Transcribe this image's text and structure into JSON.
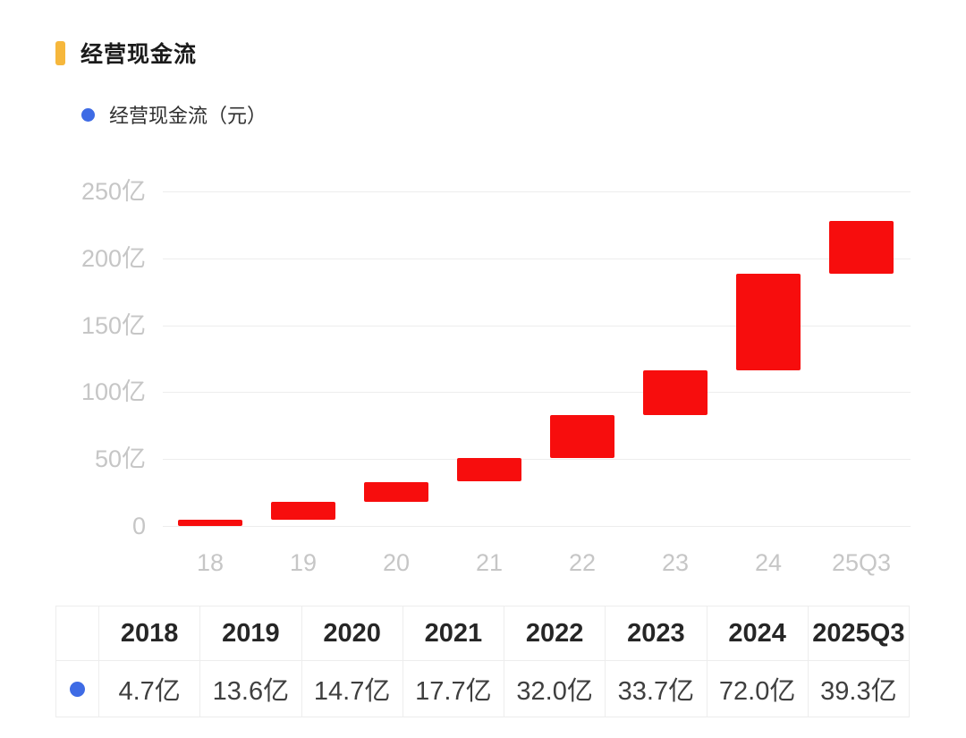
{
  "header": {
    "title": "经营现金流",
    "accent_color": "#f6b73c"
  },
  "legend": {
    "label": "经营现金流（元）",
    "dot_color": "#3e6be5"
  },
  "chart_data": {
    "type": "bar",
    "subtype": "waterfall-cumulative",
    "title": "经营现金流",
    "series_name": "经营现金流（元）",
    "categories": [
      "18",
      "19",
      "20",
      "21",
      "22",
      "23",
      "24",
      "25Q3"
    ],
    "values": [
      4.7,
      13.6,
      14.7,
      17.7,
      32.0,
      33.7,
      72.0,
      39.3
    ],
    "unit": "亿",
    "note": "each bar floats from previous cumulative sum to new cumulative sum",
    "cumulative_ends": [
      4.7,
      18.3,
      33.0,
      50.7,
      82.7,
      116.4,
      188.4,
      227.7
    ],
    "ylim": [
      0,
      250
    ],
    "y_ticks": [
      {
        "value": 0,
        "label": "0"
      },
      {
        "value": 50,
        "label": "50亿"
      },
      {
        "value": 100,
        "label": "100亿"
      },
      {
        "value": 150,
        "label": "150亿"
      },
      {
        "value": 200,
        "label": "200亿"
      },
      {
        "value": 250,
        "label": "250亿"
      }
    ],
    "grid": true,
    "legend_position": "top-left",
    "bar_color": "#f70d0d",
    "grid_color": "#ededed",
    "axis_label_color": "#c6c6c6"
  },
  "table": {
    "headers": [
      "2018",
      "2019",
      "2020",
      "2021",
      "2022",
      "2023",
      "2024",
      "2025Q3"
    ],
    "values": [
      "4.7亿",
      "13.6亿",
      "14.7亿",
      "17.7亿",
      "32.0亿",
      "33.7亿",
      "72.0亿",
      "39.3亿"
    ],
    "row_dot_color": "#3e6be5"
  }
}
